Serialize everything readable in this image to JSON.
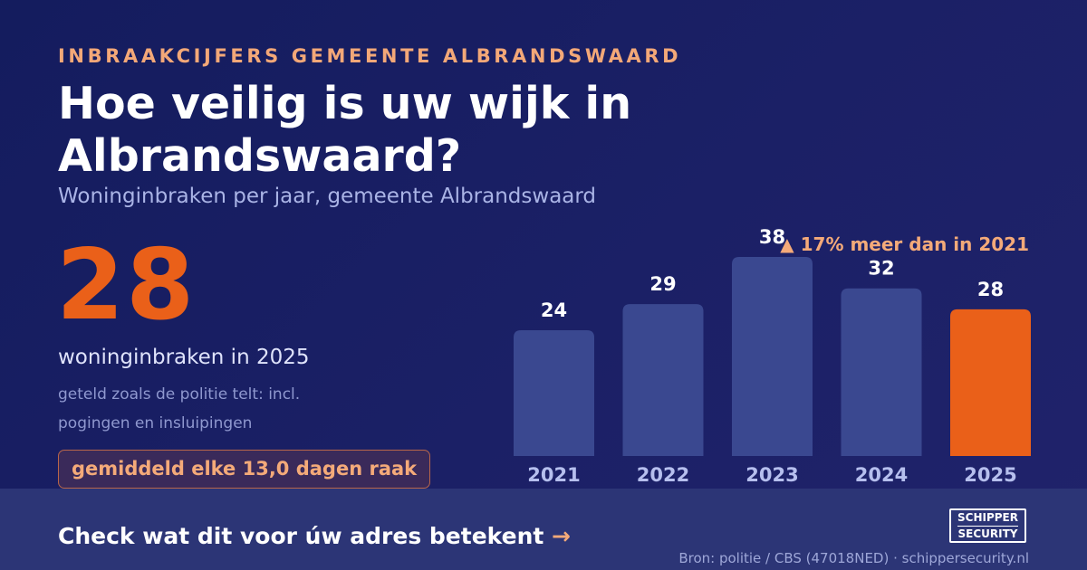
{
  "header": {
    "kicker": "INBRAAKCIJFERS GEMEENTE ALBRANDSWAARD",
    "title": "Hoe veilig is uw wijk in Albrandswaard?",
    "subtitle": "Woninginbraken per jaar, gemeente Albrandswaard"
  },
  "highlight": {
    "number": "28",
    "caption": "woninginbraken in 2025",
    "note": "geteld zoals de politie telt: incl. pogingen en insluipingen",
    "pill": "gemiddeld elke 13,0 dagen raak"
  },
  "chart_data": {
    "type": "bar",
    "categories": [
      "2021",
      "2022",
      "2023",
      "2024",
      "2025"
    ],
    "values": [
      24,
      29,
      38,
      32,
      28
    ],
    "data_labels": [
      "24",
      "29",
      "38",
      "32",
      "28"
    ],
    "annotation": "▲ 17% meer dan in 2021",
    "ylim": [
      0,
      38
    ],
    "highlight_index": 4,
    "colors": {
      "bar": "#3a4890",
      "highlight": "#ea6019",
      "value_label": "#ffffff",
      "tick_label": "#b6bfee",
      "annotation": "#f4aa79"
    }
  },
  "footer": {
    "cta_text": "Check wat dit voor úw adres betekent",
    "cta_arrow": "→",
    "logo_line1": "SCHIPPER",
    "logo_line2": "SECURITY",
    "source": "Bron: politie / CBS (47018NED) · schippersecurity.nl"
  }
}
